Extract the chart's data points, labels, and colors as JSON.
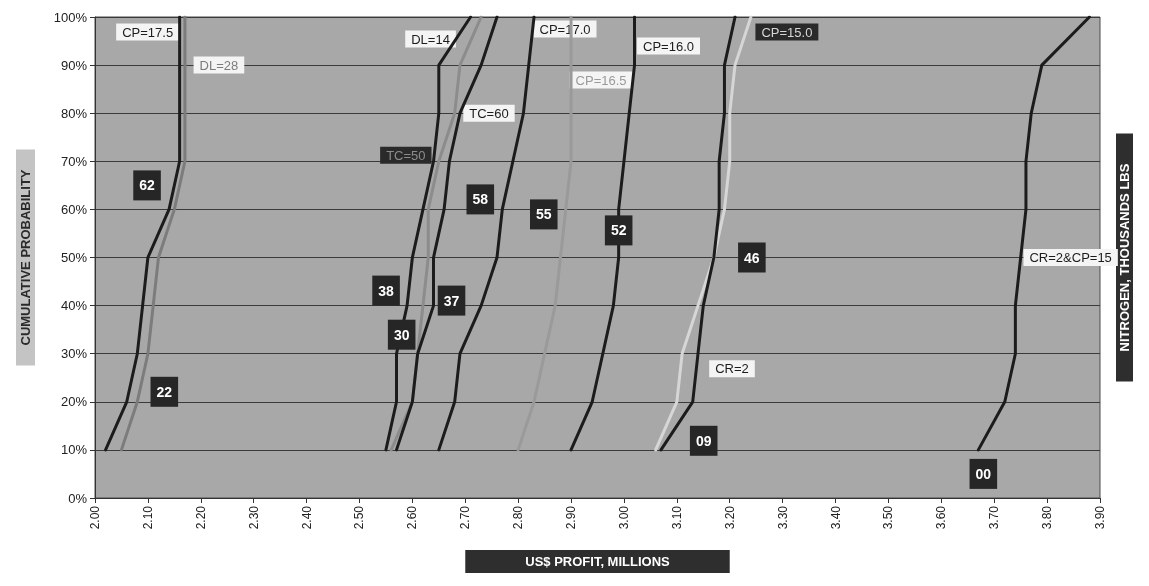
{
  "chart_data": {
    "type": "line",
    "xlabel": "US$ PROFIT, MILLIONS",
    "ylabel": "CUMULATIVE PROBABILITY",
    "y2label": "NITROGEN, THOUSANDS LBS",
    "xlim": [
      2,
      3.9
    ],
    "xticks": [
      {
        "value": 2,
        "label": "2.00"
      },
      {
        "value": 2.1,
        "label": "2.10"
      },
      {
        "value": 2.2,
        "label": "2.20"
      },
      {
        "value": 2.3,
        "label": "2.30"
      },
      {
        "value": 2.4,
        "label": "2.40"
      },
      {
        "value": 2.5,
        "label": "2.50"
      },
      {
        "value": 2.6,
        "label": "2.60"
      },
      {
        "value": 2.7,
        "label": "2.70"
      },
      {
        "value": 2.8,
        "label": "2.80"
      },
      {
        "value": 2.9,
        "label": "2.90"
      },
      {
        "value": 3,
        "label": "3.00"
      },
      {
        "value": 3.1,
        "label": "3.10"
      },
      {
        "value": 3.2,
        "label": "3.20"
      },
      {
        "value": 3.3,
        "label": "3.30"
      },
      {
        "value": 3.4,
        "label": "3.40"
      },
      {
        "value": 3.5,
        "label": "3.50"
      },
      {
        "value": 3.6,
        "label": "3.60"
      },
      {
        "value": 3.7,
        "label": "3.70"
      },
      {
        "value": 3.8,
        "label": "3.80"
      },
      {
        "value": 3.9,
        "label": "3.90"
      }
    ],
    "ylim": [
      0,
      100
    ],
    "yticks": [
      {
        "value": 0,
        "label": "0%"
      },
      {
        "value": 10,
        "label": "10%"
      },
      {
        "value": 20,
        "label": "20%"
      },
      {
        "value": 30,
        "label": "30%"
      },
      {
        "value": 40,
        "label": "40%"
      },
      {
        "value": 50,
        "label": "50%"
      },
      {
        "value": 60,
        "label": "60%"
      },
      {
        "value": 70,
        "label": "70%"
      },
      {
        "value": 80,
        "label": "80%"
      },
      {
        "value": 90,
        "label": "90%"
      },
      {
        "value": 100,
        "label": "100%"
      }
    ],
    "grid": "y",
    "marker": "none",
    "line_style": "solid",
    "series": [
      {
        "name": "CP=17.5",
        "color": "#1c1c1c",
        "x": [
          2.02,
          2.06,
          2.08,
          2.09,
          2.1,
          2.14,
          2.16,
          2.16,
          2.16,
          2.16
        ],
        "values": [
          10,
          20,
          30,
          40,
          50,
          60,
          70,
          80,
          90,
          100
        ]
      },
      {
        "name": "DL=28",
        "color": "#7c7c7c",
        "x": [
          2.05,
          2.08,
          2.1,
          2.11,
          2.12,
          2.15,
          2.17,
          2.17,
          2.17,
          2.17
        ],
        "values": [
          10,
          20,
          30,
          40,
          50,
          60,
          70,
          80,
          90,
          100
        ]
      },
      {
        "name": "DL=14",
        "color": "#1c1c1c",
        "x": [
          2.55,
          2.57,
          2.57,
          2.59,
          2.6,
          2.62,
          2.64,
          2.65,
          2.65,
          2.71
        ],
        "values": [
          10,
          20,
          30,
          40,
          50,
          60,
          70,
          80,
          90,
          100
        ]
      },
      {
        "name": "TC=50",
        "color": "#8c8c8c",
        "x": [
          2.56,
          2.6,
          2.61,
          2.62,
          2.63,
          2.63,
          2.65,
          2.68,
          2.69,
          2.73
        ],
        "values": [
          10,
          20,
          30,
          40,
          50,
          60,
          70,
          80,
          90,
          100
        ]
      },
      {
        "name": "TC=60",
        "color": "#1c1c1c",
        "x": [
          2.57,
          2.6,
          2.61,
          2.64,
          2.64,
          2.66,
          2.67,
          2.69,
          2.73,
          2.76
        ],
        "values": [
          10,
          20,
          30,
          40,
          50,
          60,
          70,
          80,
          90,
          100
        ]
      },
      {
        "name": "CP=17.0",
        "color": "#1c1c1c",
        "x": [
          2.65,
          2.68,
          2.69,
          2.73,
          2.76,
          2.77,
          2.79,
          2.81,
          2.82,
          2.83
        ],
        "values": [
          10,
          20,
          30,
          40,
          50,
          60,
          70,
          80,
          90,
          100
        ]
      },
      {
        "name": "CP=16.5",
        "color": "#9a9a9a",
        "x": [
          2.8,
          2.83,
          2.85,
          2.87,
          2.88,
          2.89,
          2.9,
          2.9,
          2.9,
          2.9
        ],
        "values": [
          10,
          20,
          30,
          40,
          50,
          60,
          70,
          80,
          90,
          100
        ]
      },
      {
        "name": "CP=16.0",
        "color": "#1c1c1c",
        "x": [
          2.9,
          2.94,
          2.96,
          2.98,
          2.99,
          2.99,
          3,
          3.01,
          3.02,
          3.02
        ],
        "values": [
          10,
          20,
          30,
          40,
          50,
          60,
          70,
          80,
          90,
          100
        ]
      },
      {
        "name": "CP=15.0",
        "color": "#d6d6d6",
        "x": [
          3.06,
          3.1,
          3.11,
          3.14,
          3.17,
          3.19,
          3.2,
          3.2,
          3.21,
          3.24
        ],
        "values": [
          10,
          20,
          30,
          40,
          50,
          60,
          70,
          80,
          90,
          100
        ]
      },
      {
        "name": "CR=2",
        "color": "#1c1c1c",
        "x": [
          3.07,
          3.13,
          3.14,
          3.15,
          3.17,
          3.18,
          3.18,
          3.19,
          3.19,
          3.21
        ],
        "values": [
          10,
          20,
          30,
          40,
          50,
          60,
          70,
          80,
          90,
          100
        ]
      },
      {
        "name": "CR=2&CP=15",
        "color": "#1c1c1c",
        "x": [
          3.67,
          3.72,
          3.74,
          3.74,
          3.75,
          3.76,
          3.76,
          3.77,
          3.79,
          3.88
        ],
        "values": [
          10,
          20,
          30,
          40,
          50,
          60,
          70,
          80,
          90,
          100
        ]
      }
    ],
    "annotations": [
      {
        "text": "62",
        "x": 2.14,
        "y": 60
      },
      {
        "text": "22",
        "x": 2.08,
        "y": 20
      },
      {
        "text": "38",
        "x": 2.59,
        "y": 40
      },
      {
        "text": "30",
        "x": 2.61,
        "y": 30
      },
      {
        "text": "37",
        "x": 2.64,
        "y": 40
      },
      {
        "text": "58",
        "x": 2.77,
        "y": 60
      },
      {
        "text": "55",
        "x": 2.89,
        "y": 60
      },
      {
        "text": "52",
        "x": 2.99,
        "y": 60
      },
      {
        "text": "46",
        "x": 3.17,
        "y": 50
      },
      {
        "text": "09",
        "x": 3.13,
        "y": 20
      },
      {
        "text": "00",
        "x": 3.67,
        "y": 10
      }
    ]
  }
}
